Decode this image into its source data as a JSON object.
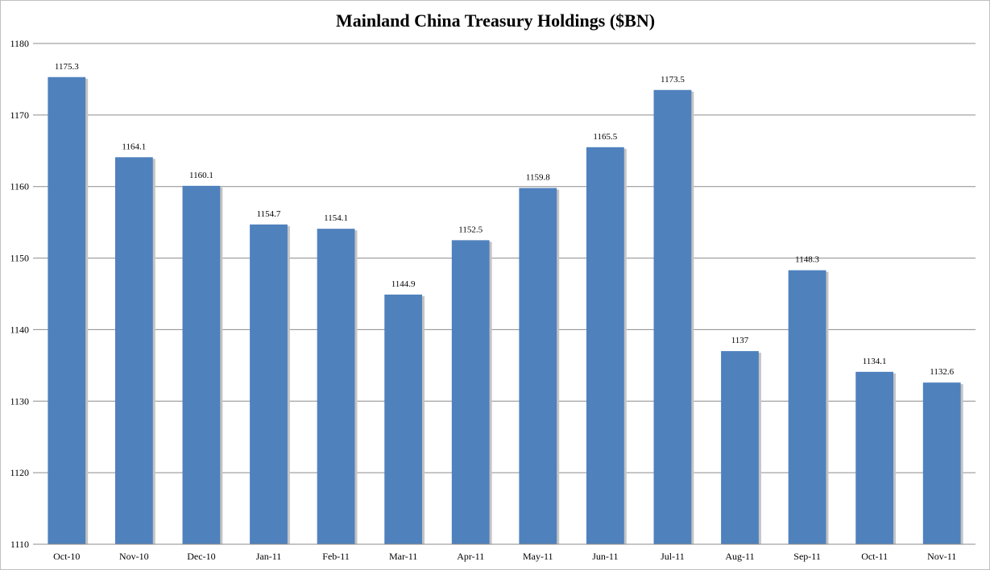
{
  "chart_data": {
    "type": "bar",
    "title": "Mainland China Treasury Holdings ($BN)",
    "xlabel": "",
    "ylabel": "",
    "categories": [
      "Oct-10",
      "Nov-10",
      "Dec-10",
      "Jan-11",
      "Feb-11",
      "Mar-11",
      "Apr-11",
      "May-11",
      "Jun-11",
      "Jul-11",
      "Aug-11",
      "Sep-11",
      "Oct-11",
      "Nov-11"
    ],
    "values": [
      1175.3,
      1164.1,
      1160.1,
      1154.7,
      1154.1,
      1144.9,
      1152.5,
      1159.8,
      1165.5,
      1173.5,
      1137,
      1148.3,
      1134.1,
      1132.6
    ],
    "data_labels": [
      "1175.3",
      "1164.1",
      "1160.1",
      "1154.7",
      "1154.1",
      "1144.9",
      "1152.5",
      "1159.8",
      "1165.5",
      "1173.5",
      "1137",
      "1148.3",
      "1134.1",
      "1132.6"
    ],
    "ylim": [
      1110,
      1180
    ],
    "yticks": [
      "1110",
      "1120",
      "1130",
      "1140",
      "1150",
      "1160",
      "1170",
      "1180"
    ],
    "grid": true,
    "legend": "none",
    "bar_color": "#4f81bd",
    "bar_shadow_color": "#c4c4c4"
  }
}
